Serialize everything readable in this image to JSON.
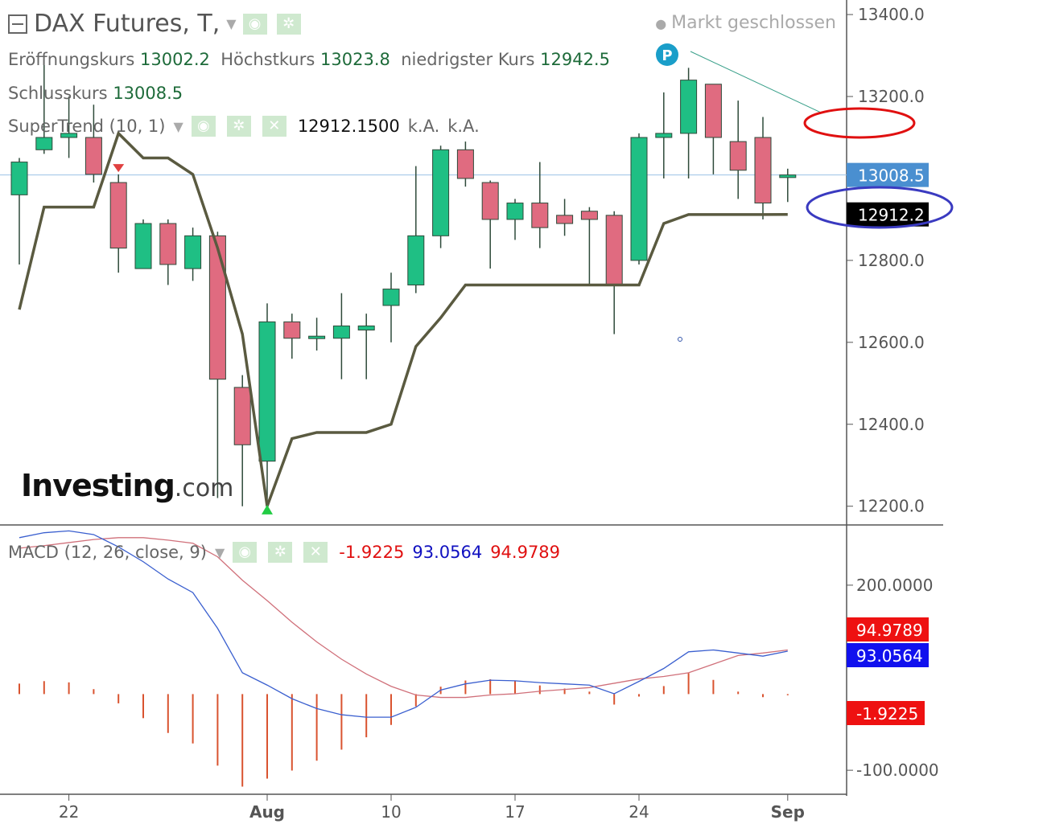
{
  "header": {
    "symbol_title": "DAX Futures, T,",
    "market_status": "Markt geschlossen",
    "open_label": "Eröffnungskurs",
    "open_value": "13002.2",
    "high_label": "Höchstkurs",
    "high_value": "13023.8",
    "low_label": "niedrigster Kurs",
    "low_value": "12942.5",
    "close_label": "Schlusskurs",
    "close_value": "13008.5"
  },
  "supertrend_legend": {
    "label": "SuperTrend (10, 1)",
    "value": "12912.1500",
    "extra1": "k.A.",
    "extra2": "k.A."
  },
  "macd_legend": {
    "label": "MACD (12, 26, close, 9)",
    "histogram": "-1.9225",
    "macd": "93.0564",
    "signal": "94.9789"
  },
  "logo": {
    "main": "Investing",
    "suffix": ".com"
  },
  "colors": {
    "up": "#1fbf84",
    "down": "#e06b80",
    "supertrend": "#5a5a40",
    "macd_line": "#3a5fcf",
    "signal_line": "#d0707a",
    "histogram": "#d9532f",
    "price_tag": "#4a8fd0",
    "st_tag": "#000000",
    "annotation_red": "#e01010",
    "annotation_blue": "#3a3ac0"
  },
  "chart_data": [
    {
      "type": "candlestick",
      "title": "DAX Futures, T,",
      "x_ticks": [
        "22",
        "Aug",
        "10",
        "17",
        "24",
        "Sep"
      ],
      "y_ticks": [
        "13400.0",
        "13200.0",
        "12800.0",
        "12600.0",
        "12400.0",
        "12200.0"
      ],
      "ylim": [
        12170,
        13410
      ],
      "candles": [
        {
          "o": 12960,
          "h": 13050,
          "l": 12790,
          "c": 13040
        },
        {
          "o": 13070,
          "h": 13300,
          "l": 13060,
          "c": 13100
        },
        {
          "o": 13100,
          "h": 13200,
          "l": 13050,
          "c": 13110
        },
        {
          "o": 13100,
          "h": 13180,
          "l": 12990,
          "c": 13010
        },
        {
          "o": 12990,
          "h": 13010,
          "l": 12770,
          "c": 12830
        },
        {
          "o": 12780,
          "h": 12900,
          "l": 12780,
          "c": 12890
        },
        {
          "o": 12890,
          "h": 12900,
          "l": 12740,
          "c": 12790
        },
        {
          "o": 12780,
          "h": 12880,
          "l": 12750,
          "c": 12860
        },
        {
          "o": 12860,
          "h": 12870,
          "l": 12220,
          "c": 12510
        },
        {
          "o": 12490,
          "h": 12520,
          "l": 12200,
          "c": 12350
        },
        {
          "o": 12310,
          "h": 12695,
          "l": 12200,
          "c": 12650
        },
        {
          "o": 12650,
          "h": 12670,
          "l": 12560,
          "c": 12610
        },
        {
          "o": 12610,
          "h": 12660,
          "l": 12580,
          "c": 12615
        },
        {
          "o": 12610,
          "h": 12720,
          "l": 12510,
          "c": 12640
        },
        {
          "o": 12630,
          "h": 12670,
          "l": 12510,
          "c": 12640
        },
        {
          "o": 12690,
          "h": 12770,
          "l": 12600,
          "c": 12730
        },
        {
          "o": 12740,
          "h": 13030,
          "l": 12720,
          "c": 12860
        },
        {
          "o": 12860,
          "h": 13080,
          "l": 12830,
          "c": 13070
        },
        {
          "o": 13070,
          "h": 13090,
          "l": 12980,
          "c": 13000
        },
        {
          "o": 12990,
          "h": 12995,
          "l": 12780,
          "c": 12900
        },
        {
          "o": 12900,
          "h": 12950,
          "l": 12850,
          "c": 12940
        },
        {
          "o": 12940,
          "h": 13040,
          "l": 12830,
          "c": 12880
        },
        {
          "o": 12910,
          "h": 12950,
          "l": 12860,
          "c": 12890
        },
        {
          "o": 12920,
          "h": 12930,
          "l": 12740,
          "c": 12900
        },
        {
          "o": 12910,
          "h": 12920,
          "l": 12620,
          "c": 12740
        },
        {
          "o": 12800,
          "h": 13110,
          "l": 12790,
          "c": 13100
        },
        {
          "o": 13100,
          "h": 13210,
          "l": 13000,
          "c": 13110
        },
        {
          "o": 13110,
          "h": 13270,
          "l": 13000,
          "c": 13240
        },
        {
          "o": 13230,
          "h": 13230,
          "l": 13010,
          "c": 13100
        },
        {
          "o": 13090,
          "h": 13190,
          "l": 12950,
          "c": 13020
        },
        {
          "o": 13100,
          "h": 13150,
          "l": 12900,
          "c": 12940
        },
        {
          "o": 13002.2,
          "h": 13023.8,
          "l": 12942.5,
          "c": 13008.5
        }
      ],
      "supertrend": [
        12680,
        12930,
        12930,
        12930,
        13110,
        13050,
        13050,
        13010,
        12830,
        12620,
        12200,
        12365,
        12380,
        12380,
        12380,
        12400,
        12590,
        12660,
        12740,
        12740,
        12740,
        12740,
        12740,
        12740,
        12740,
        12740,
        12890,
        12912,
        12912,
        12912,
        12912,
        12912.15
      ],
      "last_price": "13008.5",
      "supertrend_last": "12912.2",
      "series": [
        {
          "name": "SuperTrend (10, 1)",
          "values_key": "supertrend"
        }
      ]
    },
    {
      "type": "line",
      "title": "MACD (12, 26, close, 9)",
      "y_ticks": [
        "200.0000",
        "-100.0000"
      ],
      "ylim": [
        -135,
        295
      ],
      "macd": [
        277,
        285,
        288,
        282,
        262,
        238,
        210,
        188,
        130,
        58,
        38,
        16,
        0,
        -10,
        -14,
        -14,
        2,
        30,
        40,
        46,
        45,
        42,
        40,
        38,
        24,
        44,
        65,
        92,
        95,
        90,
        85,
        93.0564
      ],
      "signal": [
        260,
        264,
        269,
        274,
        277,
        277,
        273,
        268,
        246,
        208,
        175,
        140,
        108,
        80,
        56,
        36,
        22,
        18,
        18,
        22,
        24,
        28,
        31,
        34,
        41,
        48,
        52,
        58,
        72,
        86,
        90,
        94.9789
      ],
      "histogram": [
        17,
        21,
        19,
        8,
        -15,
        -39,
        -63,
        -80,
        -116,
        -150,
        -137,
        -124,
        -108,
        -90,
        -70,
        -50,
        -20,
        12,
        22,
        24,
        21,
        14,
        9,
        4,
        -17,
        -4,
        13,
        34,
        23,
        4,
        -5,
        -1.9225
      ],
      "series": [
        {
          "name": "MACD",
          "values_key": "macd"
        },
        {
          "name": "Signal",
          "values_key": "signal"
        },
        {
          "name": "Histogram",
          "values_key": "histogram"
        }
      ],
      "tags": [
        "94.9789",
        "93.0564",
        "-1.9225"
      ]
    }
  ]
}
